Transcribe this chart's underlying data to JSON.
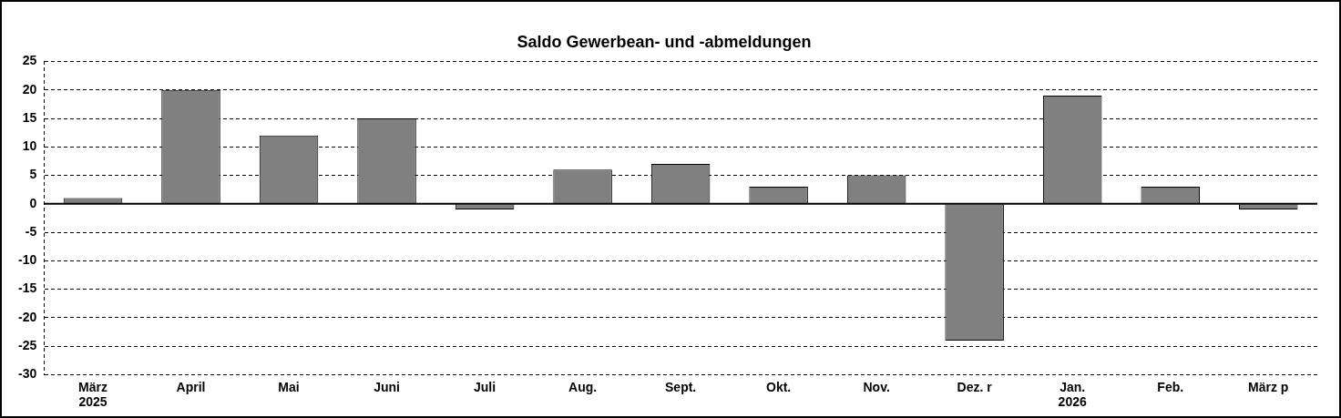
{
  "chart_data": {
    "type": "bar",
    "title": "Saldo Gewerbean- und -abmeldungen",
    "categories": [
      "März\n2025",
      "April",
      "Mai",
      "Juni",
      "Juli",
      "Aug.",
      "Sept.",
      "Okt.",
      "Nov.",
      "Dez. r",
      "Jan.\n2026",
      "Feb.",
      "März p"
    ],
    "values": [
      1,
      20,
      12,
      15,
      -1,
      6,
      7,
      3,
      5,
      -24,
      19,
      3,
      -1
    ],
    "color": "#808080",
    "ylim": [
      -30,
      25
    ],
    "yticks": [
      -30,
      -25,
      -20,
      -15,
      -10,
      -5,
      0,
      5,
      10,
      15,
      20,
      25
    ],
    "grid": "y",
    "legend": false
  }
}
